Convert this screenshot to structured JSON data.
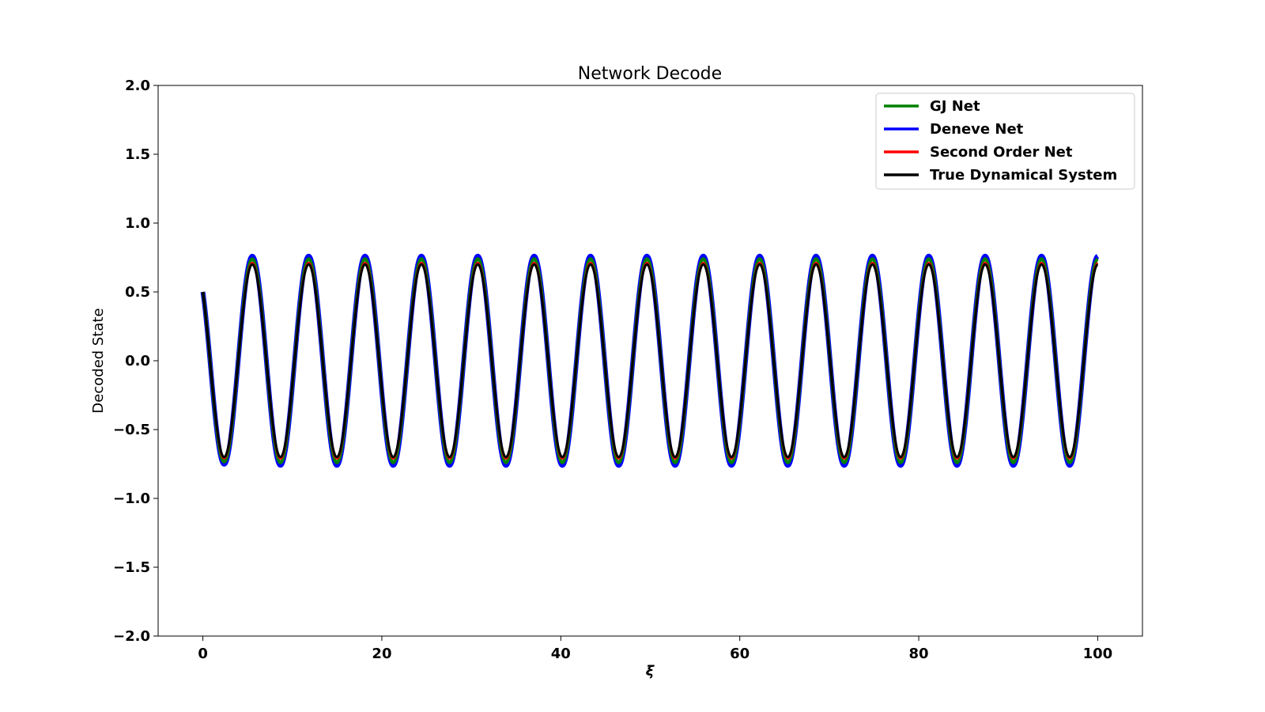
{
  "chart_data": {
    "type": "line",
    "title": "Network Decode",
    "xlabel": "ξ",
    "ylabel": "Decoded State",
    "xlim": [
      -5,
      105
    ],
    "ylim": [
      -2.0,
      2.0
    ],
    "x_ticks": [
      0,
      20,
      40,
      60,
      80,
      100
    ],
    "x_tick_labels": [
      "0",
      "20",
      "40",
      "60",
      "80",
      "100"
    ],
    "y_ticks": [
      2.0,
      1.5,
      1.0,
      0.5,
      0.0,
      -0.5,
      -1.0,
      -1.5,
      -2.0
    ],
    "y_tick_labels": [
      "2.0",
      "1.5",
      "1.0",
      "0.5",
      "0.0",
      "−0.5",
      "−1.0",
      "−1.5",
      "−2.0"
    ],
    "grid": false,
    "legend_position": "top-right",
    "signal": {
      "x_start": 0,
      "x_end": 100,
      "initial_value": 0.5,
      "period": 6.3,
      "amplitude": 0.7
    },
    "series": [
      {
        "name": "GJ Net",
        "color": "#008000",
        "amplitude": 0.74,
        "line_width": 4
      },
      {
        "name": "Deneve Net",
        "color": "#0000ff",
        "amplitude": 0.76,
        "line_width": 6
      },
      {
        "name": "Second Order Net",
        "color": "#ff0000",
        "amplitude": 0.71,
        "line_width": 3
      },
      {
        "name": "True Dynamical System",
        "color": "#000000",
        "amplitude": 0.7,
        "line_width": 3
      }
    ]
  }
}
